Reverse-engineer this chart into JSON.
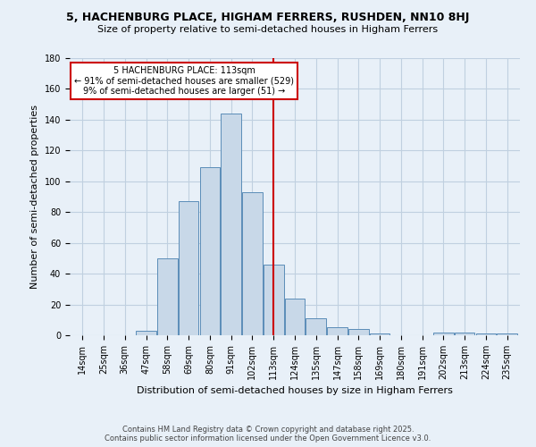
{
  "title": "5, HACHENBURG PLACE, HIGHAM FERRERS, RUSHDEN, NN10 8HJ",
  "subtitle": "Size of property relative to semi-detached houses in Higham Ferrers",
  "xlabel": "Distribution of semi-detached houses by size in Higham Ferrers",
  "ylabel": "Number of semi-detached properties",
  "categories": [
    "14sqm",
    "25sqm",
    "36sqm",
    "47sqm",
    "58sqm",
    "69sqm",
    "80sqm",
    "91sqm",
    "102sqm",
    "113sqm",
    "124sqm",
    "135sqm",
    "147sqm",
    "158sqm",
    "169sqm",
    "180sqm",
    "191sqm",
    "202sqm",
    "213sqm",
    "224sqm",
    "235sqm"
  ],
  "values": [
    0,
    0,
    0,
    3,
    50,
    87,
    109,
    144,
    93,
    46,
    24,
    11,
    5,
    4,
    1,
    0,
    0,
    2,
    2,
    1,
    1
  ],
  "bar_color": "#c8d8e8",
  "bar_edge_color": "#5b8db8",
  "marker_label": "5 HACHENBURG PLACE: 113sqm",
  "annotation_line1": "← 91% of semi-detached houses are smaller (529)",
  "annotation_line2": "9% of semi-detached houses are larger (51) →",
  "vline_color": "#cc0000",
  "annotation_box_color": "#ffffff",
  "annotation_box_edge_color": "#cc0000",
  "grid_color": "#c0d0e0",
  "background_color": "#e8f0f8",
  "footer_line1": "Contains HM Land Registry data © Crown copyright and database right 2025.",
  "footer_line2": "Contains public sector information licensed under the Open Government Licence v3.0.",
  "ylim": [
    0,
    180
  ],
  "yticks": [
    0,
    20,
    40,
    60,
    80,
    100,
    120,
    140,
    160,
    180
  ],
  "title_fontsize": 9,
  "subtitle_fontsize": 8,
  "axis_label_fontsize": 8,
  "tick_fontsize": 7,
  "footer_fontsize": 6
}
